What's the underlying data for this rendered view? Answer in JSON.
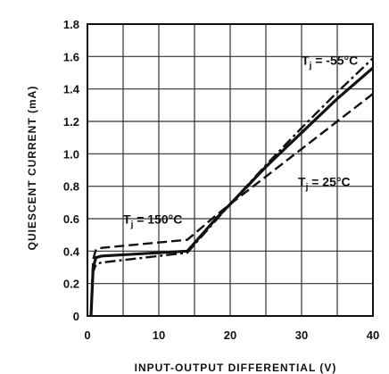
{
  "chart_data": {
    "type": "line",
    "xlabel": "INPUT-OUTPUT DIFFERENTIAL (V)",
    "ylabel": "QUIESCENT CURRENT (mA)",
    "xlim": [
      0,
      40
    ],
    "ylim": [
      0,
      1.8
    ],
    "xticks": [
      0,
      10,
      20,
      30,
      40
    ],
    "yticks": [
      0,
      0.2,
      0.4,
      0.6,
      0.8,
      1.0,
      1.2,
      1.4,
      1.6,
      1.8
    ],
    "ytick_labels": [
      "0",
      "0.2",
      "0.4",
      "0.6",
      "0.8",
      "1.0",
      "1.2",
      "1.4",
      "1.6",
      "1.8"
    ],
    "grid": true,
    "series": [
      {
        "name": "Tj = 150°C",
        "style": "dashed",
        "x": [
          0.5,
          0.8,
          1.2,
          2,
          14,
          18,
          20,
          25,
          30,
          35,
          40
        ],
        "y": [
          0.0,
          0.35,
          0.41,
          0.42,
          0.47,
          0.62,
          0.69,
          0.86,
          1.03,
          1.2,
          1.37
        ]
      },
      {
        "name": "Tj = 25°C",
        "style": "solid",
        "x": [
          0.5,
          0.8,
          1.2,
          2,
          14,
          18,
          20,
          25,
          30,
          35,
          40
        ],
        "y": [
          0.0,
          0.3,
          0.36,
          0.37,
          0.4,
          0.6,
          0.69,
          0.92,
          1.13,
          1.34,
          1.53
        ]
      },
      {
        "name": "Tj = -55°C",
        "style": "dashdot",
        "x": [
          0.5,
          0.8,
          1.2,
          2,
          14,
          18,
          20,
          25,
          30,
          35,
          40
        ],
        "y": [
          0.0,
          0.27,
          0.32,
          0.33,
          0.39,
          0.59,
          0.69,
          0.93,
          1.16,
          1.38,
          1.59
        ]
      }
    ],
    "annotations": [
      {
        "label": "T",
        "sub": "j",
        "rest": " = -55°C",
        "x": 30,
        "y": 1.55
      },
      {
        "label": "T",
        "sub": "j",
        "rest": " = 25°C",
        "x": 29.5,
        "y": 0.8
      },
      {
        "label": "T",
        "sub": "j",
        "rest": " = 150°C",
        "x": 5,
        "y": 0.57
      }
    ]
  }
}
